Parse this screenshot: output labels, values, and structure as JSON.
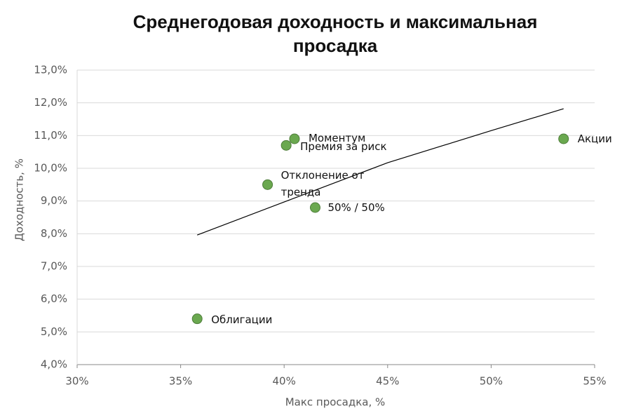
{
  "chart_data": {
    "type": "scatter",
    "title": "Среднегодовая доходность и максимальная просадка",
    "x_label": "Макс просадка, %",
    "y_label": "Доходность, %",
    "series": [
      {
        "color": "#6aa84f",
        "labels": [
          "Облигации",
          "Отклонение от тренда",
          "Премия за риск",
          "Моментум",
          "50% / 50%",
          "Акции"
        ],
        "x": [
          35.8,
          39.2,
          40.1,
          40.5,
          41.5,
          53.5
        ],
        "values": [
          5.4,
          9.5,
          10.7,
          10.9,
          8.8,
          10.9
        ]
      }
    ],
    "trendline": {
      "x": [
        35.8,
        40,
        45,
        50,
        53.5
      ],
      "y": [
        7.96,
        8.97,
        10.17,
        11.15,
        11.82
      ],
      "color": "#000000"
    },
    "xlim": [
      30,
      55
    ],
    "xticks": [
      {
        "value": 30,
        "label": "30%"
      },
      {
        "value": 35,
        "label": "35%"
      },
      {
        "value": 40,
        "label": "40%"
      },
      {
        "value": 45,
        "label": "45%"
      },
      {
        "value": 50,
        "label": "50%"
      },
      {
        "value": 55,
        "label": "55%"
      }
    ],
    "ylim": [
      4,
      13
    ],
    "yticks": [
      {
        "value": 4,
        "label": "4,0%"
      },
      {
        "value": 5,
        "label": "5,0%"
      },
      {
        "value": 6,
        "label": "6,0%"
      },
      {
        "value": 7,
        "label": "7,0%"
      },
      {
        "value": 8,
        "label": "8,0%"
      },
      {
        "value": 9,
        "label": "9,0%"
      },
      {
        "value": 10,
        "label": "10,0%"
      },
      {
        "value": 11,
        "label": "11,0%"
      },
      {
        "value": 12,
        "label": "12,0%"
      },
      {
        "value": 13,
        "label": "13,0%"
      }
    ],
    "grid": true
  }
}
